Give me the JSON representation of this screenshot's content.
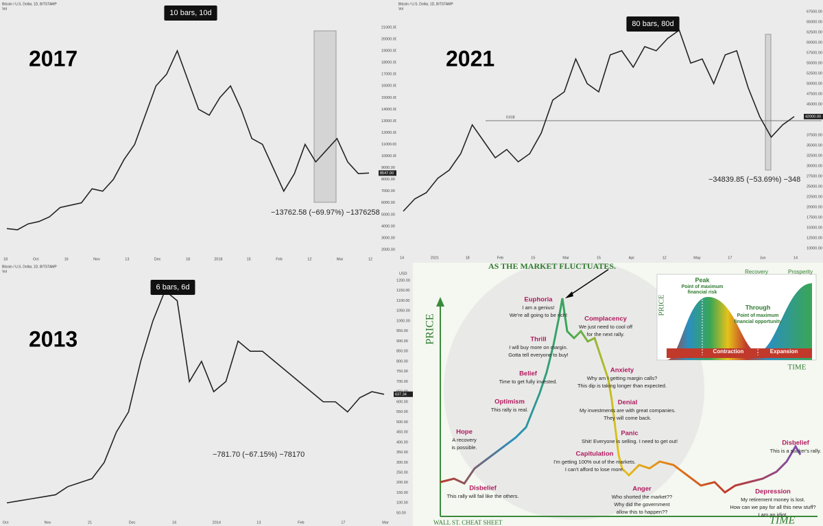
{
  "chart_data": [
    {
      "type": "line",
      "header": "Bitcoin / U.S. Dollar, 1D, BITSTAMP",
      "legend": "Vol",
      "year": "2017",
      "badge": "10 bars, 10d",
      "measure": "−13762.58 (−69.97%) −1376258",
      "color": "#222222",
      "xtick_labels": [
        "18",
        "Oct",
        "16",
        "Nov",
        "13",
        "Dec",
        "18",
        "2018",
        "15",
        "Feb",
        "12",
        "Mar",
        "12"
      ],
      "values": [
        3800,
        3700,
        4200,
        4400,
        4800,
        5600,
        5800,
        6000,
        7200,
        7000,
        8000,
        9700,
        11000,
        13500,
        16000,
        17000,
        19000,
        16500,
        14000,
        13500,
        15000,
        16000,
        14000,
        11500,
        11000,
        9000,
        7000,
        8500,
        11000,
        9500,
        10500,
        11500,
        9500,
        8500,
        8547
      ],
      "ylim": [
        2000,
        21000
      ],
      "yticks": [
        {
          "value": 21000,
          "label": "21000.00"
        },
        {
          "value": 20000,
          "label": "20000.00"
        },
        {
          "value": 19000,
          "label": "19000.00"
        },
        {
          "value": 18000,
          "label": "18000.00"
        },
        {
          "value": 17000,
          "label": "17000.00"
        },
        {
          "value": 16000,
          "label": "16000.00"
        },
        {
          "value": 15000,
          "label": "15000.00"
        },
        {
          "value": 14000,
          "label": "14000.00"
        },
        {
          "value": 13000,
          "label": "13000.00"
        },
        {
          "value": 12000,
          "label": "12000.00"
        },
        {
          "value": 11000,
          "label": "11000.00"
        },
        {
          "value": 10000,
          "label": "10000.00"
        },
        {
          "value": 9000,
          "label": "9000.00"
        },
        {
          "value": 8000,
          "label": "8000.00"
        },
        {
          "value": 7000,
          "label": "7000.00"
        },
        {
          "value": 6000,
          "label": "6000.00"
        },
        {
          "value": 5000,
          "label": "5000.00"
        },
        {
          "value": 4000,
          "label": "4000.00"
        },
        {
          "value": 3000,
          "label": "3000.00"
        },
        {
          "value": 2000,
          "label": "2000.00"
        }
      ],
      "last_price": {
        "value": 8547,
        "label": "8547.00"
      }
    },
    {
      "type": "line",
      "header": "Bitcoin / U.S. Dollar, 1D, BITSTAMP",
      "legend": "Vol",
      "year": "2021",
      "badge": "80 bars, 80d",
      "measure": "−34839.85 (−53.69%) −348",
      "fib_label": "0.618",
      "color": "#222222",
      "xtick_labels": [
        "14",
        "2021",
        "18",
        "Feb",
        "15",
        "Mar",
        "15",
        "Apr",
        "12",
        "May",
        "17",
        "Jun",
        "14"
      ],
      "values": [
        19000,
        22000,
        23500,
        27000,
        29000,
        33000,
        40000,
        36000,
        32000,
        34000,
        31000,
        33000,
        38000,
        46000,
        48000,
        56000,
        50000,
        48000,
        57000,
        58000,
        54000,
        59000,
        58000,
        61000,
        63000,
        55000,
        56000,
        50000,
        57000,
        58000,
        49000,
        42000,
        37000,
        40000,
        42000
      ],
      "ylim": [
        10000,
        67500
      ],
      "yticks": [
        {
          "value": 67500,
          "label": "67500.00"
        },
        {
          "value": 65000,
          "label": "65000.00"
        },
        {
          "value": 62500,
          "label": "62500.00"
        },
        {
          "value": 60000,
          "label": "60000.00"
        },
        {
          "value": 57500,
          "label": "57500.00"
        },
        {
          "value": 55000,
          "label": "55000.00"
        },
        {
          "value": 52500,
          "label": "52500.00"
        },
        {
          "value": 50000,
          "label": "50000.00"
        },
        {
          "value": 47500,
          "label": "47500.00"
        },
        {
          "value": 45000,
          "label": "45000.00"
        },
        {
          "value": 37500,
          "label": "37500.00"
        },
        {
          "value": 35000,
          "label": "35000.00"
        },
        {
          "value": 32500,
          "label": "32500.00"
        },
        {
          "value": 30000,
          "label": "30000.00"
        },
        {
          "value": 27500,
          "label": "27500.00"
        },
        {
          "value": 25000,
          "label": "25000.00"
        },
        {
          "value": 22500,
          "label": "22500.00"
        },
        {
          "value": 20000,
          "label": "20000.00"
        },
        {
          "value": 17500,
          "label": "17500.00"
        },
        {
          "value": 15000,
          "label": "15000.00"
        },
        {
          "value": 12500,
          "label": "12500.00"
        },
        {
          "value": 10000,
          "label": "10000.00"
        }
      ],
      "last_price": {
        "value": 42000,
        "label": "42000.00"
      }
    },
    {
      "type": "line",
      "header": "Bitcoin / U.S. Dollar, 1D, BITSTAMP",
      "legend": "Vol",
      "year": "2013",
      "badge": "6 bars, 6d",
      "measure": "−781.70 (−67.15%) −78170",
      "currency": "USD",
      "color": "#222222",
      "xtick_labels": [
        "Oct",
        "Nov",
        "21",
        "Dec",
        "16",
        "2014",
        "13",
        "Feb",
        "17",
        "Mar"
      ],
      "values": [
        100,
        110,
        120,
        130,
        140,
        180,
        200,
        220,
        300,
        450,
        550,
        800,
        1000,
        1150,
        1100,
        700,
        800,
        650,
        700,
        900,
        850,
        850,
        800,
        750,
        700,
        650,
        600,
        600,
        550,
        620,
        650,
        637
      ],
      "ylim": [
        50,
        1200
      ],
      "yticks": [
        {
          "value": 1200,
          "label": "1200.00"
        },
        {
          "value": 1150,
          "label": "1150.00"
        },
        {
          "value": 1100,
          "label": "1100.00"
        },
        {
          "value": 1050,
          "label": "1050.00"
        },
        {
          "value": 1000,
          "label": "1000.00"
        },
        {
          "value": 950,
          "label": "950.00"
        },
        {
          "value": 900,
          "label": "900.00"
        },
        {
          "value": 850,
          "label": "850.00"
        },
        {
          "value": 800,
          "label": "800.00"
        },
        {
          "value": 750,
          "label": "750.00"
        },
        {
          "value": 700,
          "label": "700.00"
        },
        {
          "value": 650,
          "label": "650.00"
        },
        {
          "value": 600,
          "label": "600.00"
        },
        {
          "value": 550,
          "label": "550.00"
        },
        {
          "value": 500,
          "label": "500.00"
        },
        {
          "value": 450,
          "label": "450.00"
        },
        {
          "value": 400,
          "label": "400.00"
        },
        {
          "value": 350,
          "label": "350.00"
        },
        {
          "value": 300,
          "label": "300.00"
        },
        {
          "value": 250,
          "label": "250.00"
        },
        {
          "value": 200,
          "label": "200.00"
        },
        {
          "value": 150,
          "label": "150.00"
        },
        {
          "value": 100,
          "label": "100.00"
        },
        {
          "value": 50,
          "label": "50.00"
        }
      ],
      "last_price": {
        "value": 637.34,
        "label": "637.34"
      }
    }
  ],
  "cheat_sheet": {
    "title": "AS THE MARKET FLUCTUATES.",
    "price_label": "PRICE",
    "time_label": "TIME",
    "footer": "WALL ST. CHEAT SHEET",
    "stages": [
      {
        "name": "Euphoria",
        "quote": [
          "I am a genius!",
          "We're all going to be rich!"
        ]
      },
      {
        "name": "Complacency",
        "quote": [
          "We just need to cool off",
          "for the next rally."
        ]
      },
      {
        "name": "Thrill",
        "quote": [
          "I will buy more on margin.",
          "Gotta tell everyone to buy!"
        ]
      },
      {
        "name": "Belief",
        "quote": [
          "Time to get fully invested."
        ]
      },
      {
        "name": "Anxiety",
        "quote": [
          "Why am I getting margin calls?",
          "This dip is taking longer than expected."
        ]
      },
      {
        "name": "Optimism",
        "quote": [
          "This rally is real."
        ]
      },
      {
        "name": "Denial",
        "quote": [
          "My investments are with great companies.",
          "They will come back."
        ]
      },
      {
        "name": "Hope",
        "quote": [
          "A recovery",
          "is possible."
        ]
      },
      {
        "name": "Panic",
        "quote": [
          "Shit! Everyone is selling. I need to get out!"
        ]
      },
      {
        "name": "Capitulation",
        "quote": [
          "I'm getting 100% out of the markets.",
          "I can't afford to lose more."
        ]
      },
      {
        "name": "Disbelief",
        "quote": [
          "This is a sucker's rally."
        ]
      },
      {
        "name": "Disbelief",
        "quote": [
          "This rally will fail like the others."
        ]
      },
      {
        "name": "Anger",
        "quote": [
          "Who shorted the market??",
          "Why did the government",
          "allow this to happen??"
        ]
      },
      {
        "name": "Depression",
        "quote": [
          "My retirement money is lost.",
          "How can we pay for all this new stuff?",
          "I am an idiot."
        ]
      }
    ],
    "inset": {
      "peak": "Peak",
      "peak_note": [
        "Point of maximum",
        "financial risk"
      ],
      "trough": "Through",
      "trough_note": [
        "Point of maximum",
        "financial opportunity"
      ],
      "contraction": "Contraction",
      "expansion": "Expansion",
      "recovery": "Recovery",
      "prosperity": "Prosperity",
      "price_label": "PRICE",
      "time_label": "TIME"
    }
  }
}
